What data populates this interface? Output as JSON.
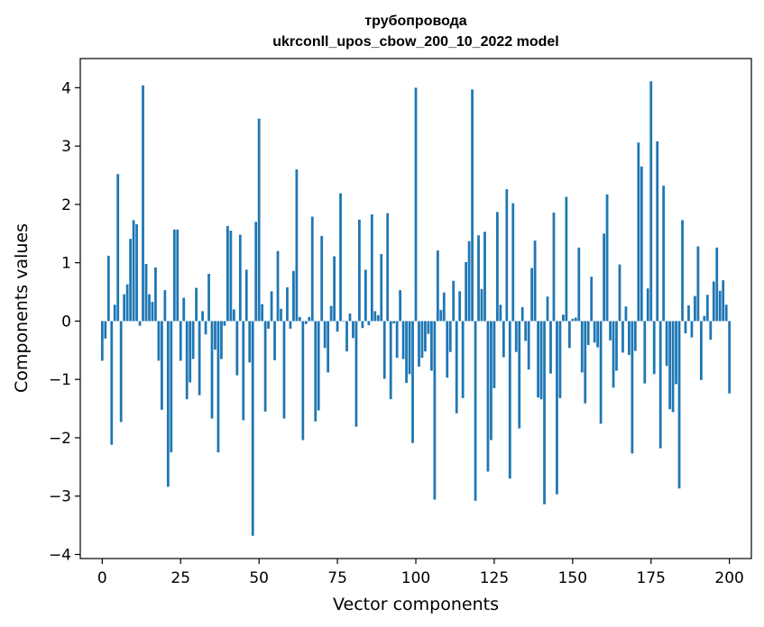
{
  "chart_data": {
    "type": "bar",
    "title": "трубопровода",
    "subtitle": "ukrconll_upos_cbow_200_10_2022 model",
    "xlabel": "Vector components",
    "ylabel": "Components values",
    "xlim": [
      -7,
      207
    ],
    "ylim": [
      -4.07,
      4.5
    ],
    "x_ticks": [
      0,
      25,
      50,
      75,
      100,
      125,
      150,
      175,
      200
    ],
    "x_tick_labels": [
      "0",
      "25",
      "50",
      "75",
      "100",
      "125",
      "150",
      "175",
      "200"
    ],
    "y_ticks": [
      -4,
      -3,
      -2,
      -1,
      0,
      1,
      2,
      3,
      4
    ],
    "y_tick_labels": [
      "−4",
      "−3",
      "−2",
      "−1",
      "0",
      "1",
      "2",
      "3",
      "4"
    ],
    "bar_color": "#1f77b4",
    "grid": false,
    "legend": "none",
    "values": [
      -0.68,
      -0.3,
      1.12,
      -2.12,
      0.28,
      2.52,
      -1.73,
      0.46,
      0.63,
      1.41,
      1.73,
      1.66,
      -0.08,
      4.04,
      0.98,
      0.46,
      0.33,
      0.92,
      -0.68,
      -1.52,
      0.53,
      -2.84,
      -2.25,
      1.57,
      1.57,
      -0.68,
      0.4,
      -1.34,
      -1.05,
      -0.65,
      0.57,
      -1.27,
      0.17,
      -0.23,
      0.81,
      -1.67,
      -0.49,
      -2.25,
      -0.65,
      -0.08,
      1.63,
      1.55,
      0.2,
      -0.93,
      1.48,
      -1.7,
      0.88,
      -0.71,
      -3.68,
      1.7,
      3.47,
      0.29,
      -1.55,
      -0.13,
      0.51,
      -0.67,
      1.2,
      0.21,
      -1.67,
      0.58,
      -0.13,
      0.86,
      2.6,
      0.07,
      -2.04,
      -0.05,
      0.07,
      1.79,
      -1.72,
      -1.53,
      1.46,
      -0.46,
      -0.88,
      0.26,
      1.11,
      -0.18,
      2.19,
      -0.01,
      -0.52,
      0.13,
      -0.29,
      -1.81,
      1.74,
      -0.12,
      0.88,
      -0.07,
      1.83,
      0.17,
      0.1,
      1.15,
      -0.99,
      1.85,
      -1.34,
      -0.04,
      -0.63,
      0.53,
      -0.65,
      -1.06,
      -0.91,
      -2.09,
      4.0,
      -0.78,
      -0.63,
      -0.52,
      -0.22,
      -0.85,
      -3.06,
      1.21,
      0.19,
      0.49,
      -0.97,
      -0.53,
      0.69,
      -1.58,
      0.51,
      -1.32,
      1.01,
      1.37,
      3.97,
      -3.08,
      1.47,
      0.55,
      1.53,
      -2.58,
      -2.04,
      -1.15,
      1.87,
      0.28,
      -0.62,
      2.26,
      -2.7,
      2.02,
      -0.53,
      -1.84,
      0.24,
      -0.34,
      -0.83,
      0.91,
      1.38,
      -1.31,
      -1.34,
      -3.14,
      0.42,
      -0.9,
      1.86,
      -2.97,
      -1.32,
      0.11,
      2.13,
      -0.46,
      0.04,
      0.06,
      1.26,
      -0.88,
      -1.41,
      -0.41,
      0.76,
      -0.37,
      -0.45,
      -1.76,
      1.5,
      2.17,
      -0.33,
      -1.14,
      -0.85,
      0.97,
      -0.54,
      0.25,
      -0.58,
      -2.27,
      -0.51,
      3.06,
      2.65,
      -1.07,
      0.56,
      4.11,
      -0.91,
      3.08,
      -2.18,
      2.32,
      -0.77,
      -1.51,
      -1.56,
      -1.08,
      -2.87,
      1.73,
      -0.21,
      0.27,
      -0.28,
      0.43,
      1.28,
      -1.01,
      0.09,
      0.45,
      -0.32,
      0.68,
      1.26,
      0.52,
      0.7,
      0.28,
      -1.24
    ]
  }
}
